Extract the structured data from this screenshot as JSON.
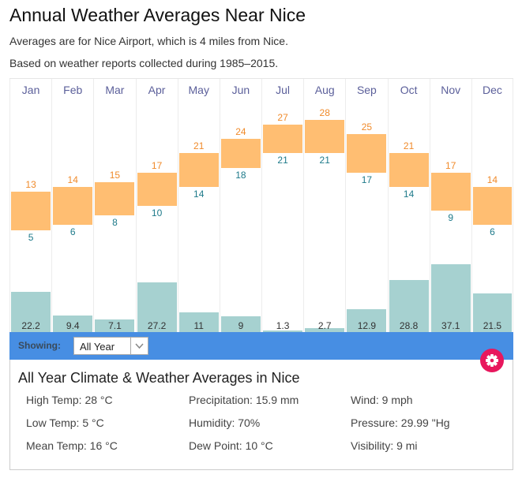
{
  "page": {
    "title": "Annual Weather Averages Near Nice",
    "subtitle1": "Averages are for Nice Airport, which is 4 miles from Nice.",
    "subtitle2": "Based on weather reports collected during 1985–2015."
  },
  "controls": {
    "showing_label": "Showing:",
    "selected_period": "All Year",
    "settings_icon": "gear-icon",
    "accent_color": "#478ee3",
    "gear_color": "#e8175d"
  },
  "summary": {
    "title": "All Year Climate & Weather Averages in Nice",
    "stats": [
      [
        "High Temp: 28 °C",
        "Precipitation: 15.9 mm",
        "Wind: 9 mph"
      ],
      [
        "Low Temp: 5 °C",
        "Humidity: 70%",
        "Pressure: 29.99 \"Hg"
      ],
      [
        "Mean Temp: 16 °C",
        "Dew Point: 10 °C",
        "Visibility: 9 mi"
      ]
    ]
  },
  "chart_data": {
    "type": "bar",
    "categories": [
      "Jan",
      "Feb",
      "Mar",
      "Apr",
      "May",
      "Jun",
      "Jul",
      "Aug",
      "Sep",
      "Oct",
      "Nov",
      "Dec"
    ],
    "series": [
      {
        "name": "High Temp (°C)",
        "values": [
          13,
          14,
          15,
          17,
          21,
          24,
          27,
          28,
          25,
          21,
          17,
          14
        ],
        "color": "#f08a2a"
      },
      {
        "name": "Low Temp (°C)",
        "values": [
          5,
          6,
          8,
          10,
          14,
          18,
          21,
          21,
          17,
          14,
          9,
          6
        ],
        "color": "#1e7a8a"
      },
      {
        "name": "Precipitation (mm)",
        "values": [
          22.2,
          9.4,
          7.1,
          27.2,
          11,
          9,
          1.3,
          2.7,
          12.9,
          28.8,
          37.1,
          21.5
        ],
        "color": "#a6d1d0"
      }
    ],
    "temp_bar_color": "#ffbe72",
    "grid": true
  }
}
